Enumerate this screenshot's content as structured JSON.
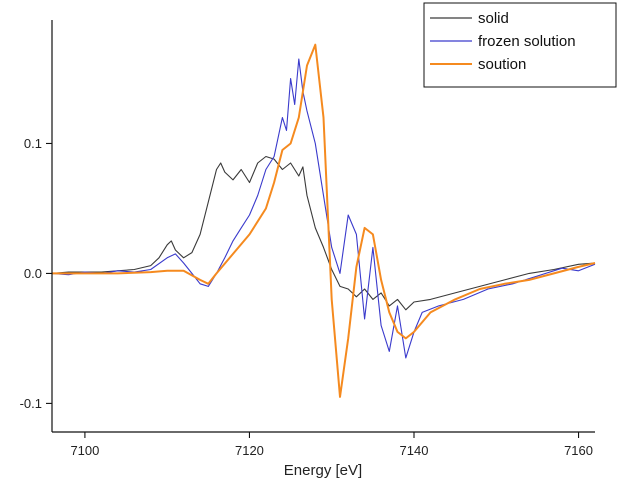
{
  "chart_data": {
    "type": "line",
    "title": "",
    "xlabel": "Energy [eV]",
    "ylabel": "",
    "xlim": [
      7096,
      7162
    ],
    "ylim": [
      -0.122,
      0.195
    ],
    "xticks": [
      7100,
      7120,
      7140,
      7160
    ],
    "xtick_labels": [
      "7100",
      "7120",
      "7140",
      "7160"
    ],
    "yticks": [
      -0.1,
      0.0,
      0.1
    ],
    "ytick_labels": [
      "-0.1",
      "0.0",
      "0.1"
    ],
    "grid": false,
    "legend_position": "top-right",
    "series": [
      {
        "name": "solid",
        "color": "#3a3a3a",
        "x": [
          7096,
          7098,
          7100,
          7102,
          7104,
          7106,
          7108,
          7109,
          7110,
          7110.5,
          7111,
          7112,
          7113,
          7114,
          7115,
          7116,
          7116.5,
          7117,
          7118,
          7119,
          7120,
          7121,
          7122,
          7123,
          7124,
          7125,
          7126,
          7126.5,
          7127,
          7128,
          7129,
          7130,
          7131,
          7132,
          7133,
          7134,
          7135,
          7136,
          7137,
          7138,
          7139,
          7140,
          7142,
          7145,
          7148,
          7151,
          7154,
          7157,
          7160,
          7162
        ],
        "y": [
          0.0,
          0.001,
          0.001,
          0.001,
          0.002,
          0.003,
          0.006,
          0.012,
          0.022,
          0.025,
          0.018,
          0.012,
          0.016,
          0.03,
          0.055,
          0.08,
          0.085,
          0.078,
          0.072,
          0.08,
          0.07,
          0.085,
          0.09,
          0.088,
          0.08,
          0.085,
          0.075,
          0.082,
          0.06,
          0.035,
          0.02,
          0.003,
          -0.01,
          -0.012,
          -0.018,
          -0.012,
          -0.02,
          -0.015,
          -0.025,
          -0.02,
          -0.028,
          -0.022,
          -0.02,
          -0.015,
          -0.01,
          -0.005,
          0.0,
          0.003,
          0.007,
          0.008
        ]
      },
      {
        "name": "frozen solution",
        "color": "#3a3acc",
        "x": [
          7096,
          7098,
          7100,
          7102,
          7104,
          7106,
          7108,
          7110,
          7111,
          7112,
          7113,
          7114,
          7115,
          7116,
          7117,
          7118,
          7119,
          7120,
          7121,
          7122,
          7123,
          7124,
          7124.5,
          7125,
          7125.5,
          7126,
          7126.5,
          7127,
          7128,
          7129,
          7130,
          7131,
          7132,
          7133,
          7134,
          7135,
          7136,
          7137,
          7138,
          7139,
          7140,
          7141,
          7143,
          7146,
          7149,
          7152,
          7155,
          7158,
          7160,
          7162
        ],
        "y": [
          0.0,
          -0.001,
          0.001,
          0.0,
          0.002,
          0.001,
          0.003,
          0.012,
          0.015,
          0.008,
          0.0,
          -0.008,
          -0.01,
          0.0,
          0.012,
          0.025,
          0.035,
          0.045,
          0.06,
          0.08,
          0.09,
          0.12,
          0.11,
          0.15,
          0.13,
          0.165,
          0.14,
          0.125,
          0.1,
          0.06,
          0.02,
          0.0,
          0.045,
          0.03,
          -0.035,
          0.02,
          -0.04,
          -0.06,
          -0.025,
          -0.065,
          -0.045,
          -0.03,
          -0.025,
          -0.02,
          -0.012,
          -0.008,
          -0.002,
          0.004,
          0.002,
          0.007
        ]
      },
      {
        "name": "soution",
        "color": "#f58a1f",
        "x": [
          7096,
          7100,
          7104,
          7108,
          7110,
          7112,
          7114,
          7115,
          7116,
          7118,
          7120,
          7122,
          7123,
          7124,
          7125,
          7126,
          7127,
          7128,
          7129,
          7130,
          7131,
          7132,
          7133,
          7134,
          7135,
          7136,
          7137,
          7138,
          7139,
          7140,
          7142,
          7145,
          7148,
          7151,
          7154,
          7157,
          7160,
          7162
        ],
        "y": [
          0.0,
          0.0,
          0.0,
          0.001,
          0.002,
          0.002,
          -0.005,
          -0.008,
          0.0,
          0.015,
          0.03,
          0.05,
          0.07,
          0.095,
          0.1,
          0.12,
          0.16,
          0.176,
          0.12,
          -0.02,
          -0.095,
          -0.05,
          0.005,
          0.035,
          0.03,
          -0.005,
          -0.03,
          -0.045,
          -0.05,
          -0.045,
          -0.03,
          -0.02,
          -0.012,
          -0.008,
          -0.005,
          0.0,
          0.005,
          0.008
        ]
      }
    ]
  }
}
